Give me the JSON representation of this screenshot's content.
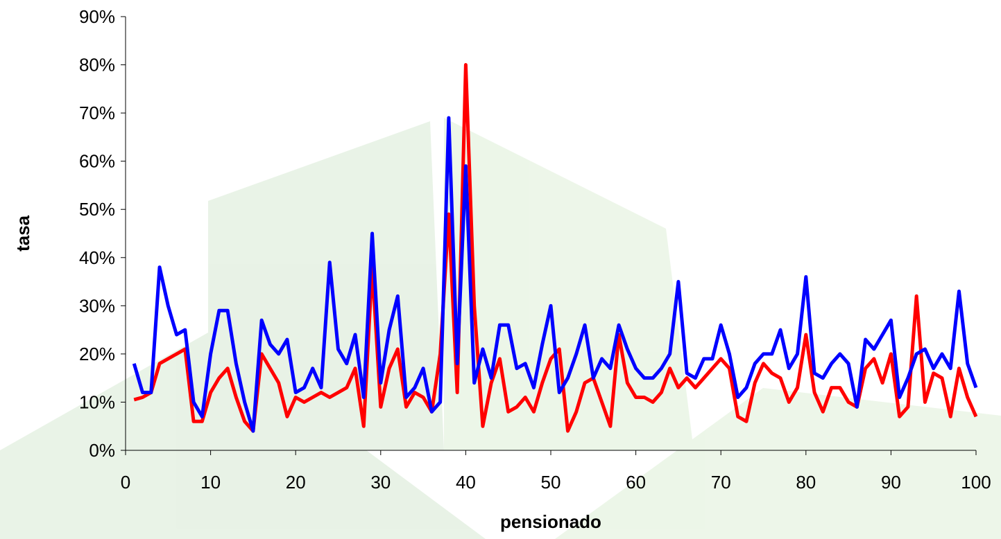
{
  "chart_data": {
    "type": "line",
    "x_label": "pensionado",
    "y_label": "tasa",
    "x": [
      1,
      2,
      3,
      4,
      5,
      6,
      7,
      8,
      9,
      10,
      11,
      12,
      13,
      14,
      15,
      16,
      17,
      18,
      19,
      20,
      21,
      22,
      23,
      24,
      25,
      26,
      27,
      28,
      29,
      30,
      31,
      32,
      33,
      34,
      35,
      36,
      37,
      38,
      39,
      40,
      41,
      42,
      43,
      44,
      45,
      46,
      47,
      48,
      49,
      50,
      51,
      52,
      53,
      54,
      55,
      56,
      57,
      58,
      59,
      60,
      61,
      62,
      63,
      64,
      65,
      66,
      67,
      68,
      69,
      70,
      71,
      72,
      73,
      74,
      75,
      76,
      77,
      78,
      79,
      80,
      81,
      82,
      83,
      84,
      85,
      86,
      87,
      88,
      89,
      90,
      91,
      92,
      93,
      94,
      95,
      96,
      97,
      98,
      99,
      100
    ],
    "series": [
      {
        "color": "#ff0000",
        "values": [
          10.5,
          11,
          12,
          18,
          19,
          20,
          21,
          6,
          6,
          12,
          15,
          17,
          11,
          6,
          4,
          20,
          17,
          14,
          7,
          11,
          10,
          11,
          12,
          11,
          12,
          13,
          17,
          5,
          38,
          9,
          17,
          21,
          9,
          12,
          11,
          8,
          20,
          49,
          12,
          80,
          30,
          5,
          14,
          19,
          8,
          9,
          11,
          8,
          14,
          19,
          21,
          4,
          8,
          14,
          15,
          10,
          5,
          24,
          14,
          11,
          11,
          10,
          12,
          17,
          13,
          15,
          13,
          15,
          17,
          19,
          17,
          7,
          6,
          14,
          18,
          16,
          15,
          10,
          13,
          24,
          12,
          8,
          13,
          13,
          10,
          9,
          17,
          19,
          14,
          20,
          7,
          9,
          32,
          10,
          16,
          15,
          7,
          17,
          11,
          7
        ]
      },
      {
        "color": "#0000ff",
        "values": [
          18,
          12,
          12,
          38,
          30,
          24,
          25,
          10,
          7,
          20,
          29,
          29,
          18,
          10,
          4,
          27,
          22,
          20,
          23,
          12,
          13,
          17,
          13,
          39,
          21,
          18,
          24,
          11,
          45,
          14,
          25,
          32,
          11,
          13,
          17,
          8,
          10,
          69,
          18,
          59,
          14,
          21,
          15,
          26,
          26,
          17,
          18,
          13,
          22,
          30,
          12,
          15,
          20,
          26,
          15,
          19,
          17,
          26,
          21,
          17,
          15,
          15,
          17,
          20,
          35,
          16,
          15,
          19,
          19,
          26,
          20,
          11,
          13,
          18,
          20,
          20,
          25,
          17,
          20,
          36,
          16,
          15,
          18,
          20,
          18,
          9,
          23,
          21,
          24,
          27,
          11,
          15,
          20,
          21,
          17,
          20,
          17,
          33,
          18,
          13
        ]
      }
    ],
    "xlim": [
      0,
      100
    ],
    "xticks": [
      0,
      10,
      20,
      30,
      40,
      50,
      60,
      70,
      80,
      90,
      100
    ],
    "ylim": [
      0,
      90
    ],
    "yticks": [
      {
        "value": 0,
        "label": "0%"
      },
      {
        "value": 10,
        "label": "10%"
      },
      {
        "value": 20,
        "label": "20%"
      },
      {
        "value": 30,
        "label": "30%"
      },
      {
        "value": 40,
        "label": "40%"
      },
      {
        "value": 50,
        "label": "50%"
      },
      {
        "value": 60,
        "label": "60%"
      },
      {
        "value": 70,
        "label": "70%"
      },
      {
        "value": 80,
        "label": "80%"
      },
      {
        "value": 90,
        "label": "90%"
      }
    ]
  }
}
